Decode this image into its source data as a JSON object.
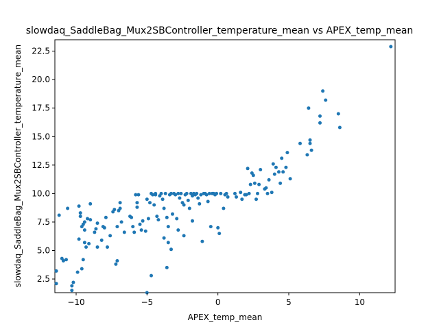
{
  "chart_data": {
    "type": "scatter",
    "title": "slowdaq_SaddleBag_Mux2SBController_temperature_mean vs APEX_temp_mean",
    "xlabel": "APEX_temp_mean",
    "ylabel": "slowdaq_SaddleBag_Mux2SBController_temperature_mean",
    "xlim": [
      -11.5,
      12.5
    ],
    "ylim": [
      1.3,
      23.5
    ],
    "xticks": [
      -10,
      -5,
      0,
      5,
      10
    ],
    "yticks": [
      2.5,
      5.0,
      7.5,
      10.0,
      12.5,
      15.0,
      17.5,
      20.0,
      22.5
    ],
    "xtick_labels": [
      "−10",
      "−5",
      "0",
      "5",
      "10"
    ],
    "ytick_labels": [
      "2.5",
      "5.0",
      "7.5",
      "10.0",
      "12.5",
      "15.0",
      "17.5",
      "20.0",
      "22.5"
    ],
    "grid": false,
    "marker_color": "#1f77b4",
    "points": [
      [
        -11.4,
        3.2
      ],
      [
        -11.4,
        2.1
      ],
      [
        -11.2,
        8.1
      ],
      [
        -11.0,
        4.3
      ],
      [
        -10.9,
        4.1
      ],
      [
        -10.7,
        4.2
      ],
      [
        -10.6,
        8.7
      ],
      [
        -10.3,
        1.5
      ],
      [
        -10.2,
        2.2
      ],
      [
        -10.3,
        1.9
      ],
      [
        -9.9,
        3.1
      ],
      [
        -9.8,
        6.0
      ],
      [
        -9.8,
        8.9
      ],
      [
        -9.7,
        8.0
      ],
      [
        -9.7,
        8.3
      ],
      [
        -9.6,
        3.4
      ],
      [
        -9.6,
        7.1
      ],
      [
        -9.5,
        7.3
      ],
      [
        -9.5,
        4.2
      ],
      [
        -9.4,
        5.7
      ],
      [
        -9.4,
        6.8
      ],
      [
        -9.4,
        7.5
      ],
      [
        -9.3,
        5.3
      ],
      [
        -9.2,
        7.8
      ],
      [
        -9.1,
        5.6
      ],
      [
        -9.0,
        7.7
      ],
      [
        -9.0,
        9.1
      ],
      [
        -8.7,
        6.6
      ],
      [
        -8.6,
        6.9
      ],
      [
        -8.5,
        7.4
      ],
      [
        -8.5,
        5.3
      ],
      [
        -8.2,
        5.9
      ],
      [
        -8.1,
        7.1
      ],
      [
        -8.0,
        7.0
      ],
      [
        -7.9,
        7.9
      ],
      [
        -7.8,
        5.3
      ],
      [
        -7.6,
        6.3
      ],
      [
        -7.4,
        8.4
      ],
      [
        -7.3,
        8.6
      ],
      [
        -7.2,
        3.8
      ],
      [
        -7.1,
        4.1
      ],
      [
        -7.1,
        7.1
      ],
      [
        -7.0,
        8.5
      ],
      [
        -6.9,
        9.2
      ],
      [
        -6.9,
        8.7
      ],
      [
        -6.8,
        7.5
      ],
      [
        -6.6,
        6.6
      ],
      [
        -6.2,
        8.0
      ],
      [
        -6.1,
        7.9
      ],
      [
        -6.0,
        7.1
      ],
      [
        -5.9,
        6.6
      ],
      [
        -5.8,
        9.9
      ],
      [
        -5.7,
        9.2
      ],
      [
        -5.7,
        8.8
      ],
      [
        -5.6,
        9.9
      ],
      [
        -5.5,
        7.3
      ],
      [
        -5.4,
        6.8
      ],
      [
        -5.3,
        7.6
      ],
      [
        -5.1,
        6.7
      ],
      [
        -5.0,
        9.5
      ],
      [
        -5.0,
        1.3
      ],
      [
        -4.9,
        7.8
      ],
      [
        -4.8,
        9.2
      ],
      [
        -4.7,
        10.0
      ],
      [
        -4.7,
        2.8
      ],
      [
        -4.6,
        9.9
      ],
      [
        -4.5,
        9.0
      ],
      [
        -4.4,
        10.0
      ],
      [
        -4.4,
        9.9
      ],
      [
        -4.3,
        8.0
      ],
      [
        -4.2,
        7.7
      ],
      [
        -4.1,
        9.8
      ],
      [
        -4.0,
        10.0
      ],
      [
        -3.9,
        9.5
      ],
      [
        -3.8,
        8.7
      ],
      [
        -3.8,
        6.1
      ],
      [
        -3.7,
        10.0
      ],
      [
        -3.6,
        3.5
      ],
      [
        -3.6,
        7.9
      ],
      [
        -3.5,
        7.1
      ],
      [
        -3.5,
        5.7
      ],
      [
        -3.4,
        9.9
      ],
      [
        -3.3,
        10.0
      ],
      [
        -3.3,
        5.1
      ],
      [
        -3.2,
        8.2
      ],
      [
        -3.1,
        10.0
      ],
      [
        -3.0,
        9.9
      ],
      [
        -2.9,
        7.8
      ],
      [
        -2.8,
        6.8
      ],
      [
        -2.8,
        10.0
      ],
      [
        -2.7,
        9.6
      ],
      [
        -2.6,
        10.0
      ],
      [
        -2.5,
        9.2
      ],
      [
        -2.4,
        9.0
      ],
      [
        -2.4,
        6.3
      ],
      [
        -2.3,
        9.9
      ],
      [
        -2.2,
        10.0
      ],
      [
        -2.1,
        9.4
      ],
      [
        -2.0,
        8.7
      ],
      [
        -1.9,
        10.0
      ],
      [
        -1.8,
        9.8
      ],
      [
        -1.8,
        7.6
      ],
      [
        -1.7,
        10.0
      ],
      [
        -1.6,
        9.9
      ],
      [
        -1.5,
        10.0
      ],
      [
        -1.4,
        9.6
      ],
      [
        -1.3,
        9.1
      ],
      [
        -1.2,
        9.9
      ],
      [
        -1.1,
        5.8
      ],
      [
        -1.0,
        10.0
      ],
      [
        -0.9,
        10.0
      ],
      [
        -0.8,
        9.9
      ],
      [
        -0.7,
        9.3
      ],
      [
        -0.6,
        10.0
      ],
      [
        -0.5,
        7.1
      ],
      [
        -0.4,
        10.0
      ],
      [
        -0.3,
        10.0
      ],
      [
        -0.2,
        9.9
      ],
      [
        -0.1,
        10.0
      ],
      [
        0.0,
        7.0
      ],
      [
        0.1,
        6.5
      ],
      [
        0.2,
        10.0
      ],
      [
        0.4,
        8.7
      ],
      [
        0.5,
        9.9
      ],
      [
        0.6,
        10.0
      ],
      [
        0.7,
        9.7
      ],
      [
        1.2,
        10.0
      ],
      [
        1.3,
        9.7
      ],
      [
        1.6,
        10.1
      ],
      [
        1.7,
        9.5
      ],
      [
        1.9,
        9.9
      ],
      [
        2.0,
        9.9
      ],
      [
        2.1,
        12.2
      ],
      [
        2.2,
        10.0
      ],
      [
        2.3,
        10.8
      ],
      [
        2.4,
        11.8
      ],
      [
        2.5,
        11.6
      ],
      [
        2.6,
        10.9
      ],
      [
        2.7,
        9.5
      ],
      [
        2.8,
        10.0
      ],
      [
        2.9,
        10.8
      ],
      [
        3.0,
        12.1
      ],
      [
        3.3,
        10.4
      ],
      [
        3.4,
        10.5
      ],
      [
        3.5,
        10.0
      ],
      [
        3.6,
        11.2
      ],
      [
        3.8,
        10.1
      ],
      [
        3.9,
        12.6
      ],
      [
        4.0,
        11.7
      ],
      [
        4.1,
        12.3
      ],
      [
        4.3,
        11.9
      ],
      [
        4.4,
        10.9
      ],
      [
        4.5,
        13.1
      ],
      [
        4.6,
        11.9
      ],
      [
        4.8,
        12.3
      ],
      [
        4.9,
        13.6
      ],
      [
        5.1,
        11.3
      ],
      [
        5.8,
        14.4
      ],
      [
        6.3,
        13.4
      ],
      [
        6.4,
        17.5
      ],
      [
        6.5,
        14.7
      ],
      [
        6.5,
        14.4
      ],
      [
        6.6,
        13.8
      ],
      [
        7.2,
        16.8
      ],
      [
        7.2,
        16.2
      ],
      [
        7.4,
        19.0
      ],
      [
        7.6,
        18.2
      ],
      [
        8.5,
        17.0
      ],
      [
        8.6,
        15.8
      ],
      [
        12.2,
        22.9
      ]
    ]
  }
}
